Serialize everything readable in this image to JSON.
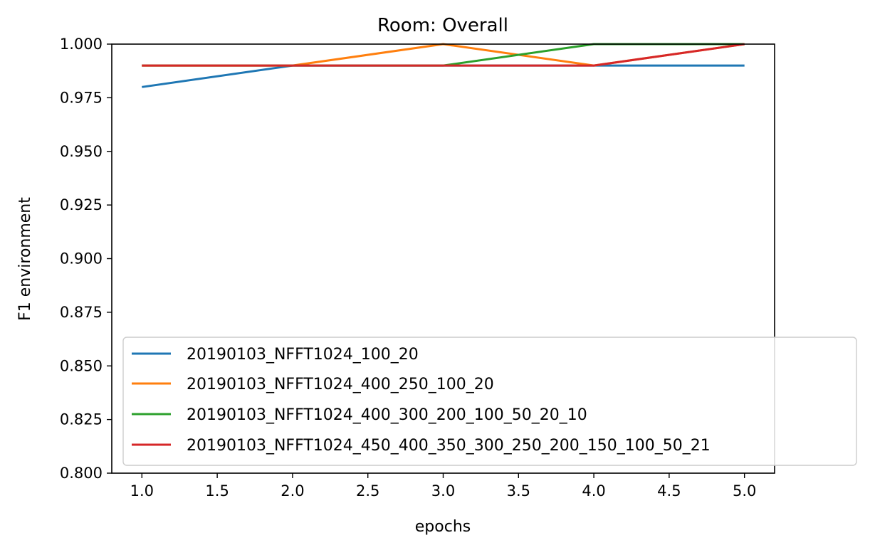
{
  "chart_data": {
    "type": "line",
    "title": "Room: Overall",
    "xlabel": "epochs",
    "ylabel": "F1 environment",
    "x": [
      1.0,
      2.0,
      3.0,
      4.0,
      5.0
    ],
    "xlim": [
      0.8,
      5.2
    ],
    "ylim": [
      0.8,
      1.0
    ],
    "xticks": [
      1.0,
      1.5,
      2.0,
      2.5,
      3.0,
      3.5,
      4.0,
      4.5,
      5.0
    ],
    "xtick_labels": [
      "1.0",
      "1.5",
      "2.0",
      "2.5",
      "3.0",
      "3.5",
      "4.0",
      "4.5",
      "5.0"
    ],
    "yticks": [
      0.8,
      0.825,
      0.85,
      0.875,
      0.9,
      0.925,
      0.95,
      0.975,
      1.0
    ],
    "ytick_labels": [
      "0.800",
      "0.825",
      "0.850",
      "0.875",
      "0.900",
      "0.925",
      "0.950",
      "0.975",
      "1.000"
    ],
    "grid": false,
    "legend_position": "lower-right",
    "series": [
      {
        "name": "20190103_NFFT1024_100_20",
        "color": "#1f77b4",
        "values": [
          0.98,
          0.99,
          0.99,
          0.99,
          0.99
        ]
      },
      {
        "name": "20190103_NFFT1024_400_250_100_20",
        "color": "#ff7f0e",
        "values": [
          0.99,
          0.99,
          1.0,
          0.99,
          1.0
        ]
      },
      {
        "name": "20190103_NFFT1024_400_300_200_100_50_20_10",
        "color": "#2ca02c",
        "values": [
          0.99,
          0.99,
          0.99,
          1.0,
          1.0
        ]
      },
      {
        "name": "20190103_NFFT1024_450_400_350_300_250_200_150_100_50_21",
        "color": "#d62728",
        "values": [
          0.99,
          0.99,
          0.99,
          0.99,
          1.0
        ]
      }
    ]
  }
}
